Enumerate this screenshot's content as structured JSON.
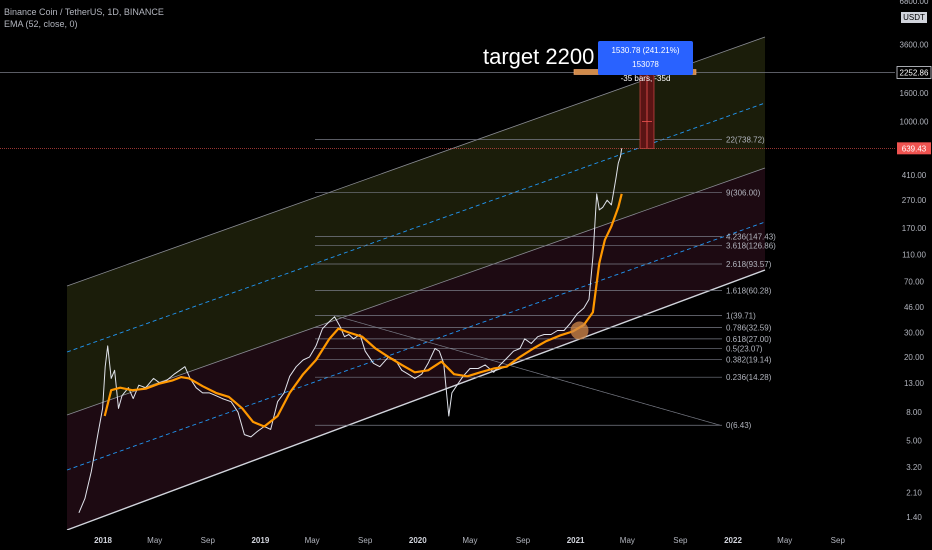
{
  "legend": {
    "symbol": "Binance Coin / TetherUS, 1D, BINANCE",
    "indicator": "EMA (52, close, 0)"
  },
  "annotation": {
    "target_text": "target 2200 $",
    "measure_line1": "1530.78 (241.21%) 153078",
    "measure_line2": "-35 bars, -35d"
  },
  "price_axis": {
    "unit": "USDT",
    "top_label": "6800.00",
    "labels": [
      "6800.00",
      "3600.00",
      "2252.86",
      "1600.00",
      "1000.00",
      "639.43",
      "410.00",
      "270.00",
      "170.00",
      "110.00",
      "70.00",
      "46.00",
      "30.00",
      "20.00",
      "13.00",
      "8.00",
      "5.00",
      "3.20",
      "2.10",
      "1.40"
    ],
    "highlight_current": "639.43",
    "highlight_target": "2252.86"
  },
  "time_axis": {
    "labels": [
      "2018",
      "May",
      "Sep",
      "2019",
      "May",
      "Sep",
      "2020",
      "May",
      "Sep",
      "2021",
      "May",
      "Sep",
      "2022",
      "May",
      "Sep"
    ]
  },
  "fib_levels": [
    {
      "label": "22(738.72)",
      "value": 738.72
    },
    {
      "label": "9(306.00)",
      "value": 306.0
    },
    {
      "label": "4.236(147.43)",
      "value": 147.43
    },
    {
      "label": "3.618(126.86)",
      "value": 126.86
    },
    {
      "label": "2.618(93.57)",
      "value": 93.57
    },
    {
      "label": "1.618(60.28)",
      "value": 60.28
    },
    {
      "label": "1(39.71)",
      "value": 39.71
    },
    {
      "label": "0.786(32.59)",
      "value": 32.59
    },
    {
      "label": "0.618(27.00)",
      "value": 27.0
    },
    {
      "label": "0.5(23.07)",
      "value": 23.07
    },
    {
      "label": "0.382(19.14)",
      "value": 19.14
    },
    {
      "label": "0.236(14.28)",
      "value": 14.28
    },
    {
      "label": "0(6.43)",
      "value": 6.43
    }
  ],
  "colors": {
    "background": "#000000",
    "price_line": "#e0e3eb",
    "ema": "#ff9800",
    "channel_mid": "#2196f3",
    "channel_edge": "#b2b5be",
    "channel_fill_upper": "#1b1d0a",
    "channel_fill_lower": "#1d0a12",
    "measure": "#2962ff",
    "current_price_tag": "#ef5350"
  },
  "chart_data": {
    "type": "line",
    "title": "Binance Coin / TetherUS, 1D, BINANCE",
    "xlabel": "",
    "ylabel": "",
    "y_scale": "log",
    "ylim": [
      1.2,
      6800
    ],
    "x_range": [
      "2017-11-06",
      "2022-11-30"
    ],
    "series": [
      {
        "name": "Binance Coin / TetherUS",
        "points": [
          [
            "2017-11-06",
            1.5
          ],
          [
            "2017-11-20",
            1.9
          ],
          [
            "2017-12-05",
            3.0
          ],
          [
            "2017-12-20",
            5.5
          ],
          [
            "2017-12-31",
            8.5
          ],
          [
            "2018-01-06",
            17
          ],
          [
            "2018-01-12",
            24
          ],
          [
            "2018-01-20",
            14
          ],
          [
            "2018-01-28",
            16
          ],
          [
            "2018-02-06",
            8.5
          ],
          [
            "2018-02-14",
            10.5
          ],
          [
            "2018-03-01",
            12
          ],
          [
            "2018-03-12",
            10
          ],
          [
            "2018-03-25",
            12.5
          ],
          [
            "2018-04-10",
            12
          ],
          [
            "2018-04-28",
            14
          ],
          [
            "2018-05-12",
            13
          ],
          [
            "2018-05-28",
            13.5
          ],
          [
            "2018-06-15",
            15
          ],
          [
            "2018-06-28",
            16
          ],
          [
            "2018-07-10",
            17
          ],
          [
            "2018-07-22",
            14
          ],
          [
            "2018-08-05",
            12
          ],
          [
            "2018-08-20",
            11
          ],
          [
            "2018-09-05",
            11
          ],
          [
            "2018-09-20",
            10.5
          ],
          [
            "2018-10-05",
            10
          ],
          [
            "2018-10-25",
            9.5
          ],
          [
            "2018-11-10",
            8
          ],
          [
            "2018-11-25",
            5.5
          ],
          [
            "2018-12-10",
            5.3
          ],
          [
            "2018-12-25",
            5.8
          ],
          [
            "2019-01-10",
            6.3
          ],
          [
            "2019-01-25",
            6.0
          ],
          [
            "2019-02-10",
            9.5
          ],
          [
            "2019-02-25",
            11
          ],
          [
            "2019-03-10",
            14.5
          ],
          [
            "2019-03-25",
            17
          ],
          [
            "2019-04-10",
            19
          ],
          [
            "2019-04-25",
            20
          ],
          [
            "2019-05-10",
            24
          ],
          [
            "2019-05-25",
            32
          ],
          [
            "2019-06-10",
            36
          ],
          [
            "2019-06-22",
            39
          ],
          [
            "2019-07-05",
            33
          ],
          [
            "2019-07-15",
            28
          ],
          [
            "2019-07-25",
            29
          ],
          [
            "2019-08-05",
            27
          ],
          [
            "2019-08-20",
            29
          ],
          [
            "2019-09-01",
            22
          ],
          [
            "2019-09-20",
            18
          ],
          [
            "2019-10-05",
            17
          ],
          [
            "2019-10-25",
            20
          ],
          [
            "2019-11-10",
            19
          ],
          [
            "2019-11-25",
            16
          ],
          [
            "2019-12-10",
            15
          ],
          [
            "2019-12-25",
            14
          ],
          [
            "2020-01-10",
            15
          ],
          [
            "2020-01-25",
            18
          ],
          [
            "2020-02-10",
            23
          ],
          [
            "2020-02-20",
            22
          ],
          [
            "2020-03-01",
            18
          ],
          [
            "2020-03-13",
            7.5
          ],
          [
            "2020-03-20",
            11
          ],
          [
            "2020-04-01",
            12.5
          ],
          [
            "2020-04-15",
            14.5
          ],
          [
            "2020-05-01",
            16.5
          ],
          [
            "2020-05-20",
            16.5
          ],
          [
            "2020-06-05",
            17.5
          ],
          [
            "2020-06-25",
            15.5
          ],
          [
            "2020-07-10",
            17.5
          ],
          [
            "2020-07-25",
            19.5
          ],
          [
            "2020-08-10",
            22
          ],
          [
            "2020-08-25",
            23
          ],
          [
            "2020-09-05",
            27
          ],
          [
            "2020-09-20",
            25
          ],
          [
            "2020-10-05",
            28
          ],
          [
            "2020-10-20",
            29
          ],
          [
            "2020-11-05",
            29
          ],
          [
            "2020-11-20",
            31
          ],
          [
            "2020-12-05",
            31
          ],
          [
            "2020-12-20",
            35
          ],
          [
            "2021-01-05",
            41
          ],
          [
            "2021-01-20",
            45
          ],
          [
            "2021-02-01",
            52
          ],
          [
            "2021-02-10",
            105
          ],
          [
            "2021-02-19",
            300
          ],
          [
            "2021-02-25",
            230
          ],
          [
            "2021-03-05",
            240
          ],
          [
            "2021-03-15",
            270
          ],
          [
            "2021-03-25",
            250
          ],
          [
            "2021-04-05",
            395
          ],
          [
            "2021-04-10",
            500
          ],
          [
            "2021-04-15",
            560
          ],
          [
            "2021-04-18",
            639.43
          ]
        ]
      },
      {
        "name": "EMA (52, close, 0)",
        "points": [
          [
            "2018-01-05",
            7.5
          ],
          [
            "2018-01-20",
            11.5
          ],
          [
            "2018-02-10",
            12
          ],
          [
            "2018-03-10",
            11.5
          ],
          [
            "2018-04-10",
            11.8
          ],
          [
            "2018-05-10",
            12.8
          ],
          [
            "2018-06-10",
            13.5
          ],
          [
            "2018-07-01",
            14.3
          ],
          [
            "2018-07-20",
            14
          ],
          [
            "2018-08-20",
            12.3
          ],
          [
            "2018-09-20",
            11
          ],
          [
            "2018-10-20",
            10.3
          ],
          [
            "2018-11-20",
            8.5
          ],
          [
            "2018-12-15",
            6.8
          ],
          [
            "2019-01-10",
            6.3
          ],
          [
            "2019-02-10",
            7.5
          ],
          [
            "2019-03-10",
            11
          ],
          [
            "2019-04-10",
            15
          ],
          [
            "2019-05-10",
            19
          ],
          [
            "2019-06-10",
            27
          ],
          [
            "2019-07-01",
            32
          ],
          [
            "2019-07-25",
            30
          ],
          [
            "2019-08-25",
            28
          ],
          [
            "2019-09-25",
            23
          ],
          [
            "2019-10-25",
            20
          ],
          [
            "2019-11-25",
            17.5
          ],
          [
            "2019-12-25",
            15.5
          ],
          [
            "2020-01-25",
            16
          ],
          [
            "2020-02-25",
            18.5
          ],
          [
            "2020-03-25",
            15
          ],
          [
            "2020-04-25",
            14.5
          ],
          [
            "2020-05-25",
            15.5
          ],
          [
            "2020-06-25",
            16.5
          ],
          [
            "2020-07-25",
            17
          ],
          [
            "2020-08-25",
            20
          ],
          [
            "2020-09-25",
            23
          ],
          [
            "2020-10-25",
            26
          ],
          [
            "2020-11-25",
            28.5
          ],
          [
            "2020-12-25",
            30.5
          ],
          [
            "2021-01-20",
            34
          ],
          [
            "2021-02-10",
            42
          ],
          [
            "2021-02-25",
            95
          ],
          [
            "2021-03-10",
            140
          ],
          [
            "2021-03-25",
            175
          ],
          [
            "2021-04-10",
            240
          ],
          [
            "2021-04-18",
            300
          ]
        ]
      }
    ],
    "annotations": [
      "target 2200 $"
    ]
  }
}
